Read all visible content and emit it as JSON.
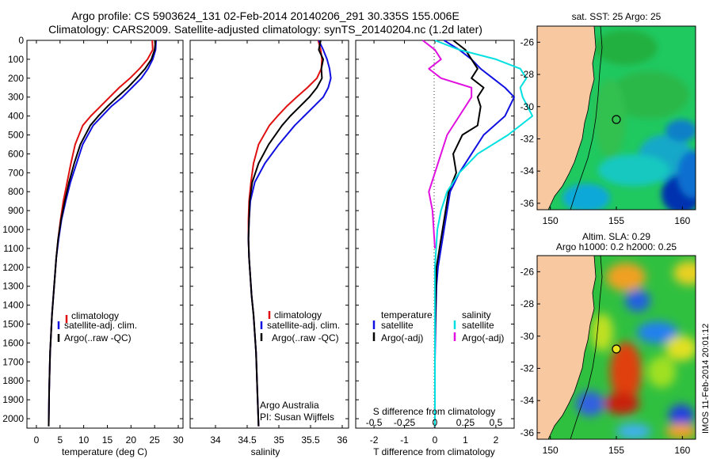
{
  "title_line1": "Argo profile: CS 5903624_131 02-Feb-2014 20140206_291 30.335S 155.006E",
  "title_line2": "Climatology: CARS2009. Satellite-adjusted climatology: synTS_20140204.nc (1.2d later)",
  "side_stamp": "IMOS 11-Feb-2014 20:01:12",
  "credit_line1": "Argo Australia",
  "credit_line2": "PI: Susan Wijffels",
  "colors": {
    "climatology": "#e01010",
    "satellite": "#1010e0",
    "argo": "#000000",
    "sat_s": "#00e0e0",
    "argo_s": "#e010e0",
    "land": "#f8c8a0"
  },
  "chart_data": [
    {
      "type": "line",
      "ylim": [
        2050,
        0
      ],
      "yticks": [
        0,
        100,
        200,
        300,
        400,
        500,
        600,
        700,
        800,
        900,
        1000,
        1100,
        1200,
        1300,
        1400,
        1500,
        1600,
        1700,
        1800,
        1900,
        2000
      ],
      "xlabel": "temperature (deg C)",
      "xlim": [
        -2,
        31
      ],
      "xticks": [
        0,
        5,
        10,
        15,
        20,
        25,
        30
      ],
      "legend": [
        "climatology",
        "satellite-adj. clim.",
        "Argo(..raw -QC)"
      ],
      "series": [
        {
          "name": "climatology",
          "x": [
            24.5,
            24.6,
            23.5,
            21.8,
            19.8,
            17.5,
            15.5,
            13.5,
            11.5,
            9.8,
            8.2,
            7.3,
            6.5,
            5.7,
            5.1,
            4.6,
            4.2,
            3.9,
            3.6,
            3.3,
            3.1,
            2.9,
            2.7,
            2.6
          ],
          "y": [
            0,
            50,
            100,
            150,
            200,
            250,
            300,
            350,
            400,
            450,
            550,
            650,
            750,
            850,
            950,
            1050,
            1150,
            1250,
            1350,
            1450,
            1550,
            1650,
            1850,
            2040
          ]
        },
        {
          "name": "satellite-adj. clim.",
          "x": [
            25.3,
            25.2,
            24.6,
            23.6,
            22.2,
            20.2,
            18.2,
            15.8,
            13.9,
            12.0,
            9.8,
            8.5,
            7.2,
            6.2,
            5.3,
            4.7,
            4.2,
            3.9,
            3.6,
            3.3,
            3.1,
            2.9,
            2.7,
            2.6
          ],
          "y": [
            0,
            50,
            100,
            150,
            200,
            250,
            300,
            350,
            400,
            450,
            550,
            650,
            750,
            850,
            950,
            1050,
            1150,
            1250,
            1350,
            1450,
            1550,
            1650,
            1850,
            2040
          ]
        },
        {
          "name": "Argo(..raw -QC)",
          "x": [
            25.2,
            25.0,
            24.3,
            23.0,
            21.2,
            19.3,
            17.1,
            15.0,
            13.1,
            11.4,
            9.3,
            8.0,
            6.9,
            6.0,
            5.2,
            4.6,
            4.2,
            3.9,
            3.6,
            3.3,
            3.1,
            2.9,
            2.7,
            2.6
          ],
          "y": [
            0,
            50,
            100,
            150,
            200,
            250,
            300,
            350,
            400,
            450,
            550,
            650,
            750,
            850,
            950,
            1050,
            1150,
            1250,
            1350,
            1450,
            1550,
            1650,
            1850,
            2040
          ]
        }
      ]
    },
    {
      "type": "line",
      "ylim": [
        2050,
        0
      ],
      "xlabel": "salinity",
      "xlim": [
        33.6,
        36.1
      ],
      "xticks": [
        34,
        34.5,
        35,
        35.5,
        36
      ],
      "xticklabels": [
        "34",
        "34.5",
        "35",
        "35.5",
        "36"
      ],
      "legend": [
        "climatology",
        "satellite-adj. clim.",
        "Argo(..raw -QC)"
      ],
      "series": [
        {
          "name": "climatology",
          "x": [
            35.62,
            35.66,
            35.68,
            35.67,
            35.6,
            35.45,
            35.28,
            35.12,
            34.98,
            34.85,
            34.68,
            34.6,
            34.56,
            34.53,
            34.52,
            34.52,
            34.53,
            34.55,
            34.57,
            34.6,
            34.62,
            34.64,
            34.66,
            34.68
          ],
          "y": [
            0,
            50,
            100,
            150,
            200,
            250,
            300,
            350,
            400,
            450,
            550,
            650,
            750,
            850,
            950,
            1050,
            1150,
            1250,
            1350,
            1450,
            1550,
            1650,
            1850,
            2040
          ]
        },
        {
          "name": "satellite-adj. clim.",
          "x": [
            35.63,
            35.7,
            35.76,
            35.8,
            35.82,
            35.78,
            35.7,
            35.55,
            35.4,
            35.25,
            35.0,
            34.78,
            34.62,
            34.55,
            34.53,
            34.52,
            34.53,
            34.55,
            34.57,
            34.6,
            34.62,
            34.64,
            34.66,
            34.68
          ],
          "y": [
            0,
            50,
            100,
            150,
            200,
            250,
            300,
            350,
            400,
            450,
            550,
            650,
            750,
            850,
            950,
            1050,
            1150,
            1250,
            1350,
            1450,
            1550,
            1650,
            1850,
            2040
          ]
        },
        {
          "name": "Argo(..raw -QC)",
          "x": [
            35.66,
            35.63,
            35.7,
            35.67,
            35.68,
            35.6,
            35.48,
            35.33,
            35.18,
            35.05,
            34.84,
            34.68,
            34.58,
            34.54,
            34.53,
            34.52,
            34.53,
            34.55,
            34.57,
            34.6,
            34.62,
            34.64,
            34.66,
            34.68
          ],
          "y": [
            0,
            50,
            100,
            150,
            200,
            250,
            300,
            350,
            400,
            450,
            550,
            650,
            750,
            850,
            950,
            1050,
            1150,
            1250,
            1350,
            1450,
            1550,
            1650,
            1850,
            2040
          ]
        }
      ]
    },
    {
      "type": "line",
      "ylim": [
        2050,
        0
      ],
      "xlabel": "T difference from climatology",
      "xlim": [
        -2.6,
        2.6
      ],
      "xticks": [
        -2,
        -1,
        0,
        1,
        2
      ],
      "top_axis_label": "S difference from climatology",
      "top_ticklabels": [
        "-0.5",
        "-0.25",
        "0",
        "0.25",
        "0.5"
      ],
      "legend_title_left": "temperature",
      "legend_title_right": "salinity",
      "legend_left": [
        "satellite",
        "Argo(-adj)"
      ],
      "legend_right": [
        "satellite",
        "Argo(-adj)"
      ],
      "series": [
        {
          "name": "T satellite",
          "x": [
            0.3,
            0.8,
            1.2,
            1.5,
            1.9,
            2.3,
            2.6,
            2.3,
            1.6,
            1.2,
            0.8,
            0.5,
            0.4,
            0.3,
            0.2,
            0.1,
            0.05,
            0.02,
            0,
            0,
            0
          ],
          "y": [
            0,
            50,
            100,
            150,
            200,
            250,
            300,
            400,
            500,
            600,
            700,
            800,
            900,
            1000,
            1100,
            1200,
            1300,
            1500,
            1700,
            1900,
            2040
          ]
        },
        {
          "name": "T Argo(-adj)",
          "x": [
            0.6,
            1.0,
            1.2,
            1.4,
            1.2,
            1.6,
            1.4,
            1.5,
            1.4,
            0.9,
            0.6,
            0.7,
            0.45,
            0.35,
            0.25,
            0.15,
            0.05,
            0.02,
            0,
            0,
            0
          ],
          "y": [
            0,
            50,
            100,
            150,
            200,
            250,
            300,
            350,
            450,
            500,
            600,
            700,
            800,
            900,
            1000,
            1100,
            1200,
            1400,
            1600,
            1800,
            2040
          ]
        },
        {
          "name": "S satellite",
          "x": [
            0,
            0.2,
            0.5,
            0.7,
            0.75,
            0.7,
            0.72,
            0.8,
            0.6,
            0.35,
            0.2,
            0.1,
            0.05,
            0.02,
            0,
            0,
            0
          ],
          "y": [
            0,
            50,
            100,
            150,
            200,
            250,
            300,
            400,
            500,
            600,
            700,
            800,
            900,
            1000,
            1200,
            1600,
            2040
          ]
        },
        {
          "name": "S Argo(-adj)",
          "x": [
            -0.1,
            0,
            0.05,
            -0.05,
            0.05,
            0.3,
            0.3,
            0.2,
            0.1,
            0.05,
            0,
            -0.05,
            -0.02,
            0
          ],
          "y": [
            0,
            50,
            100,
            150,
            200,
            250,
            300,
            400,
            500,
            600,
            700,
            800,
            900,
            1100
          ]
        }
      ]
    },
    {
      "type": "heatmap",
      "title": "sat. SST: 25 Argo: 25",
      "xticks": [
        150,
        155,
        160
      ],
      "yticks": [
        -26,
        -28,
        -30,
        -32,
        -34,
        -36
      ]
    },
    {
      "type": "heatmap",
      "title_line1": "Altim. SLA: 0.29",
      "title_line2": "Argo h1000: 0.2 h2000: 0.25",
      "xticks": [
        150,
        155,
        160
      ],
      "yticks": [
        -26,
        -28,
        -30,
        -32,
        -34,
        -36
      ]
    }
  ]
}
